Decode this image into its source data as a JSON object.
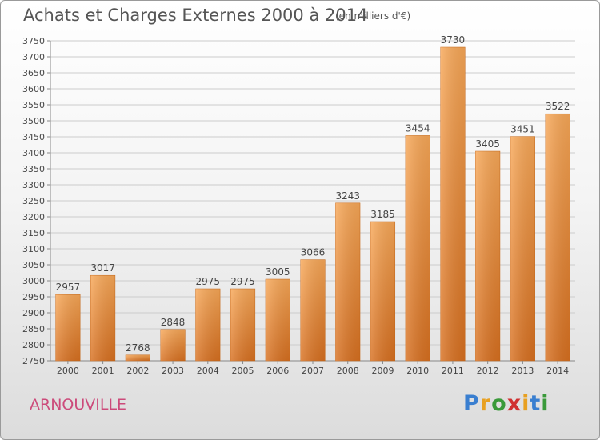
{
  "title": "Achats et Charges Externes 2000 à 2014",
  "subtitle": "(en milliers d'€)",
  "commune": "ARNOUVILLE",
  "logo": {
    "letters": [
      {
        "char": "P",
        "color": "#3a7fd0"
      },
      {
        "char": "r",
        "color": "#e8a020"
      },
      {
        "char": "o",
        "color": "#3a9a3a"
      },
      {
        "char": "x",
        "color": "#d03030"
      },
      {
        "char": "i",
        "color": "#e8a020"
      },
      {
        "char": "t",
        "color": "#3a7fd0"
      },
      {
        "char": "i",
        "color": "#3a9a3a"
      }
    ]
  },
  "colors": {
    "bar_top": "#f8a858",
    "bar_bottom": "#d87020",
    "grid": "#cccccc"
  },
  "chart_data": {
    "type": "bar",
    "title": "Achats et Charges Externes 2000 à 2014",
    "subtitle": "(en milliers d'€)",
    "xlabel": "",
    "ylabel": "",
    "categories": [
      "2000",
      "2001",
      "2002",
      "2003",
      "2004",
      "2005",
      "2006",
      "2007",
      "2008",
      "2009",
      "2010",
      "2011",
      "2012",
      "2013",
      "2014"
    ],
    "values": [
      2957,
      3017,
      2768,
      2848,
      2975,
      2975,
      3005,
      3066,
      3243,
      3185,
      3454,
      3730,
      3405,
      3451,
      3522
    ],
    "ylim": [
      2750,
      3750
    ],
    "ytick_step": 50,
    "grid": true,
    "data_labels": true
  }
}
